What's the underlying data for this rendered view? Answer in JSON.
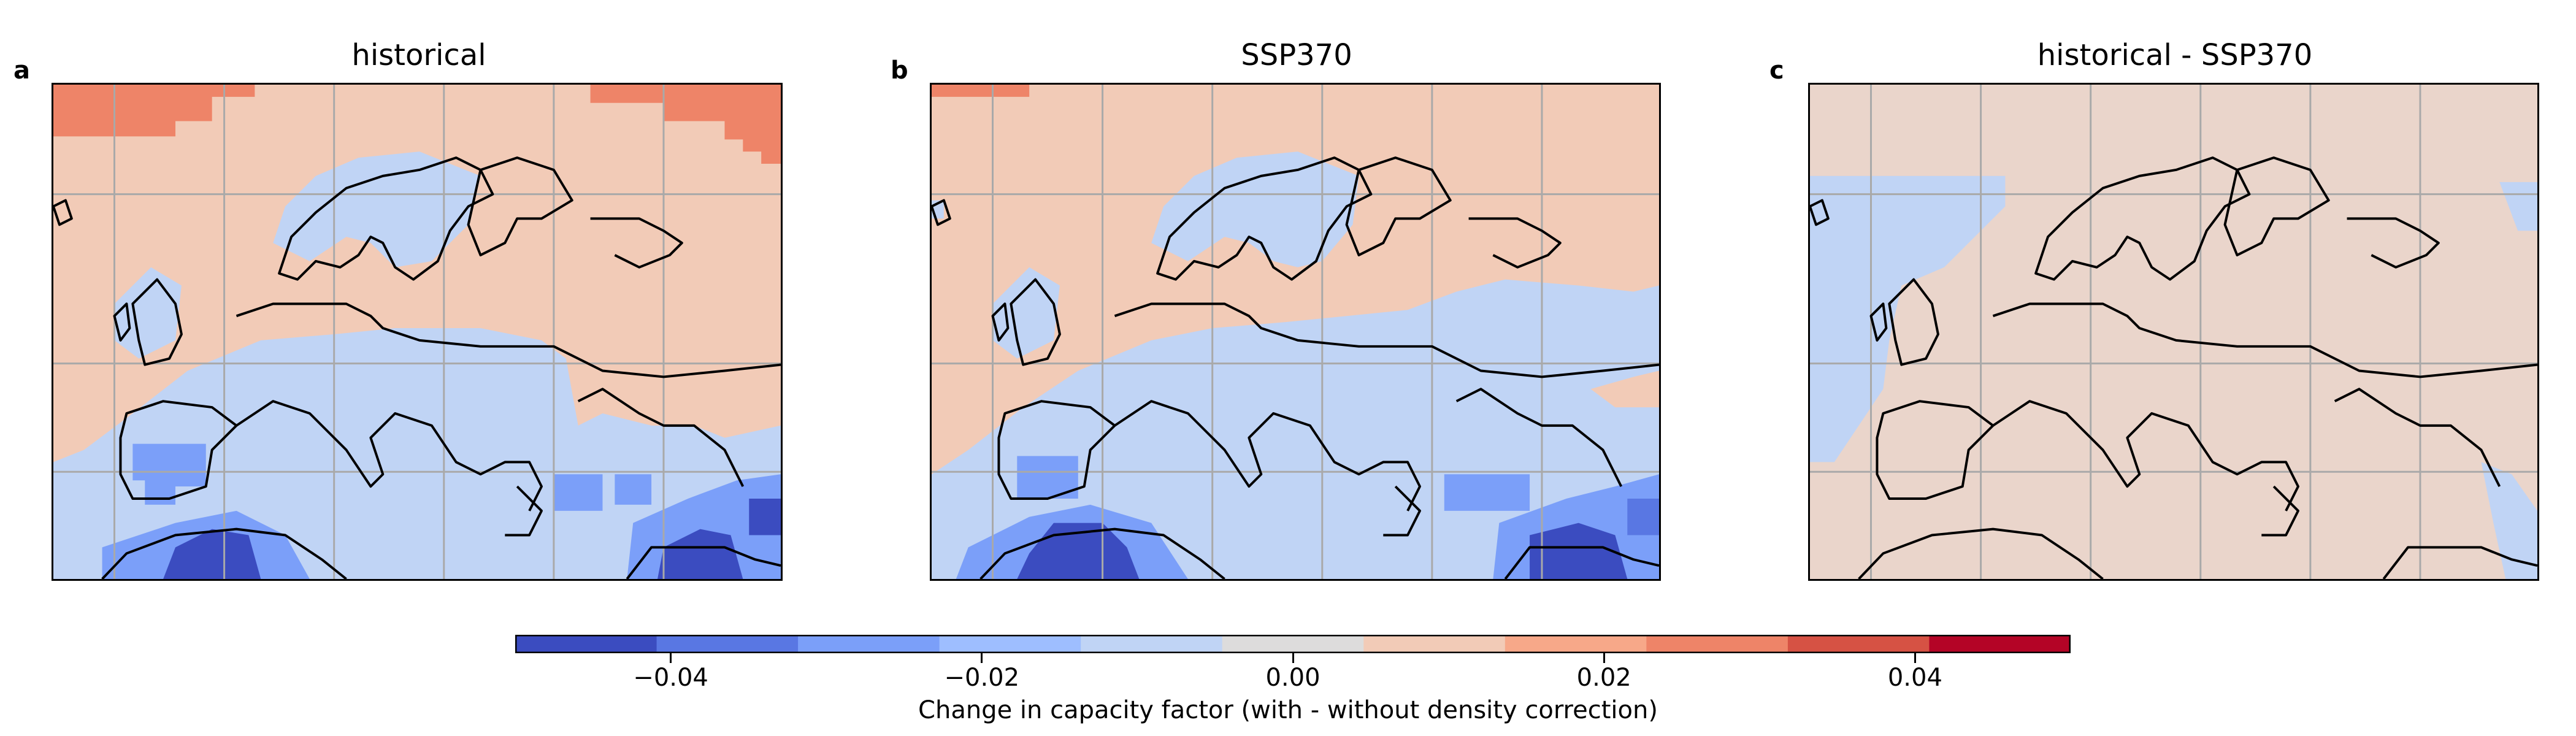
{
  "panels": [
    {
      "letter": "a",
      "title": "historical"
    },
    {
      "letter": "b",
      "title": "SSP370"
    },
    {
      "letter": "c",
      "title": "historical - SSP370"
    }
  ],
  "colors": {
    "deep_blue": "#3b4cc0",
    "mid_blue": "#7b9ff9",
    "light_blue": "#c0d4f5",
    "light_peach": "#f2cbb7",
    "very_light_peach": "#ead5cb",
    "salmon": "#ee8468",
    "red": "#b40426",
    "coast": "#000000",
    "grid": "#a9a9a9"
  },
  "colorbar": {
    "label": "Change in capacity factor (with - without density correction)",
    "range": [
      -0.05,
      0.05
    ],
    "ticks": [
      "−0.04",
      "−0.02",
      "0.00",
      "0.02",
      "0.04"
    ],
    "tick_values": [
      -0.04,
      -0.02,
      0,
      0.02,
      0.04
    ],
    "bins": [
      "#3b4cc0",
      "#5977e3",
      "#7b9ff9",
      "#9ebeff",
      "#c0d4f5",
      "#dddcdc",
      "#f2cbb7",
      "#f7a889",
      "#ee8468",
      "#d65244",
      "#b40426"
    ]
  }
}
